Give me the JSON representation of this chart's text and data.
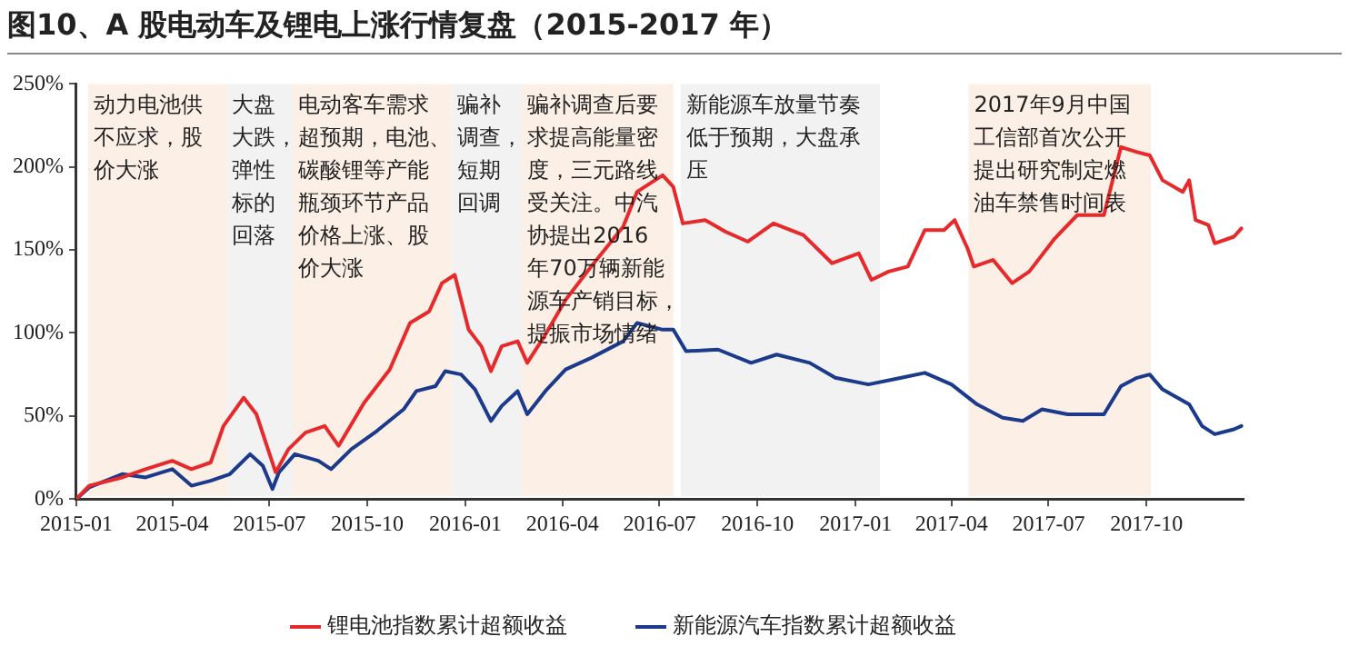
{
  "chart_data": {
    "type": "line",
    "title": "图10、A 股电动车及锂电上涨行情复盘（2015-2017 年）",
    "xlim": [
      "2015-01-01",
      "2017-12-31"
    ],
    "xticks": [
      "2015-01",
      "2015-04",
      "2015-07",
      "2015-10",
      "2016-01",
      "2016-04",
      "2016-07",
      "2016-10",
      "2017-01",
      "2017-04",
      "2017-07",
      "2017-10"
    ],
    "ylim": [
      0,
      250
    ],
    "yticks": [
      {
        "value": 0,
        "label": "0%"
      },
      {
        "value": 50,
        "label": "50%"
      },
      {
        "value": 100,
        "label": "100%"
      },
      {
        "value": 150,
        "label": "150%"
      },
      {
        "value": 200,
        "label": "200%"
      },
      {
        "value": 250,
        "label": "250%"
      }
    ],
    "grid": false,
    "legend": "bottom",
    "marker": "none",
    "line_style": "solid",
    "series": [
      {
        "name": "锂电池指数累计超额收益",
        "color": "#e8292b",
        "x": [
          "2015-01-01",
          "2015-01-13",
          "2015-02-13",
          "2015-03-07",
          "2015-04-01",
          "2015-04-19",
          "2015-05-07",
          "2015-05-19",
          "2015-06-07",
          "2015-06-19",
          "2015-07-07",
          "2015-07-19",
          "2015-08-04",
          "2015-08-22",
          "2015-09-04",
          "2015-09-28",
          "2015-10-22",
          "2015-11-10",
          "2015-11-28",
          "2015-12-10",
          "2015-12-22",
          "2016-01-04",
          "2016-01-16",
          "2016-01-25",
          "2016-02-04",
          "2016-02-19",
          "2016-02-28",
          "2016-03-16",
          "2016-04-04",
          "2016-04-28",
          "2016-05-28",
          "2016-06-10",
          "2016-07-04",
          "2016-07-14",
          "2016-07-23",
          "2016-08-13",
          "2016-09-01",
          "2016-09-22",
          "2016-10-16",
          "2016-11-13",
          "2016-12-10",
          "2017-01-04",
          "2017-01-16",
          "2017-02-01",
          "2017-02-19",
          "2017-03-07",
          "2017-03-25",
          "2017-04-04",
          "2017-04-16",
          "2017-04-22",
          "2017-05-10",
          "2017-05-28",
          "2017-06-13",
          "2017-07-07",
          "2017-07-28",
          "2017-08-22",
          "2017-09-07",
          "2017-09-22",
          "2017-10-04",
          "2017-10-16",
          "2017-11-04",
          "2017-11-10",
          "2017-11-16",
          "2017-11-28",
          "2017-12-04",
          "2017-12-22",
          "2017-12-29"
        ],
        "values": [
          0,
          8,
          13,
          18,
          23,
          18,
          22,
          44,
          61,
          51,
          16,
          30,
          40,
          44,
          32,
          58,
          78,
          106,
          113,
          130,
          135,
          102,
          92,
          77,
          92,
          95,
          82,
          99,
          120,
          140,
          164,
          185,
          195,
          188,
          166,
          168,
          161,
          155,
          166,
          159,
          142,
          148,
          132,
          137,
          140,
          162,
          162,
          168,
          151,
          140,
          144,
          130,
          137,
          157,
          171,
          171,
          212,
          209,
          207,
          192,
          185,
          192,
          168,
          165,
          154,
          158,
          163
        ]
      },
      {
        "name": "新能源汽车指数累计超额收益",
        "color": "#1b3a8c",
        "x": [
          "2015-01-01",
          "2015-01-13",
          "2015-02-13",
          "2015-03-07",
          "2015-04-01",
          "2015-04-19",
          "2015-05-07",
          "2015-05-25",
          "2015-06-13",
          "2015-06-25",
          "2015-07-04",
          "2015-07-10",
          "2015-07-25",
          "2015-08-16",
          "2015-08-28",
          "2015-09-16",
          "2015-10-10",
          "2015-11-04",
          "2015-11-16",
          "2015-12-04",
          "2015-12-13",
          "2015-12-28",
          "2016-01-10",
          "2016-01-25",
          "2016-02-04",
          "2016-02-19",
          "2016-02-28",
          "2016-03-16",
          "2016-04-04",
          "2016-04-28",
          "2016-05-28",
          "2016-06-10",
          "2016-07-04",
          "2016-07-14",
          "2016-07-26",
          "2016-08-25",
          "2016-09-25",
          "2016-10-19",
          "2016-11-19",
          "2016-12-13",
          "2017-01-13",
          "2017-02-13",
          "2017-03-07",
          "2017-04-01",
          "2017-04-25",
          "2017-05-19",
          "2017-06-07",
          "2017-06-25",
          "2017-07-19",
          "2017-08-22",
          "2017-09-07",
          "2017-09-22",
          "2017-10-04",
          "2017-10-16",
          "2017-11-10",
          "2017-11-22",
          "2017-12-04",
          "2017-12-22",
          "2017-12-29"
        ],
        "values": [
          0,
          7,
          15,
          13,
          18,
          8,
          11,
          15,
          27,
          20,
          6,
          16,
          27,
          23,
          18,
          30,
          41,
          54,
          65,
          68,
          77,
          75,
          66,
          47,
          56,
          65,
          51,
          65,
          78,
          85,
          95,
          106,
          102,
          102,
          89,
          90,
          82,
          87,
          82,
          73,
          69,
          73,
          76,
          69,
          57,
          49,
          47,
          54,
          51,
          51,
          68,
          73,
          75,
          66,
          57,
          44,
          39,
          42,
          44
        ]
      }
    ],
    "bands": [
      {
        "axis": "x",
        "from": "2015-01-12",
        "to": "2015-05-22",
        "color": "#fcefe6",
        "label": "动力电池供不应求，股价大涨"
      },
      {
        "axis": "x",
        "from": "2015-05-22",
        "to": "2015-07-23",
        "color": "#f2f2f2",
        "label": "大盘大跌，弹性标的回落"
      },
      {
        "axis": "x",
        "from": "2015-07-23",
        "to": "2015-12-19",
        "color": "#fcefe6",
        "label": "电动客车需求超预期，电池、碳酸锂等产能瓶颈环节产品价格上涨、股价大涨"
      },
      {
        "axis": "x",
        "from": "2015-12-19",
        "to": "2016-02-23",
        "color": "#f2f2f2",
        "label": "骗补调查，短期回调"
      },
      {
        "axis": "x",
        "from": "2016-02-23",
        "to": "2016-07-14",
        "color": "#fcefe6",
        "label": "骗补调查后要求提高能量密度，三元路线受关注。中汽协提出2016年70万辆新能源车产销目标，提振市场情绪"
      },
      {
        "axis": "x",
        "from": "2016-07-21",
        "to": "2017-01-24",
        "color": "#f2f2f2",
        "label": "新能源车放量节奏低于预期，大盘承压"
      },
      {
        "axis": "x",
        "from": "2017-04-17",
        "to": "2017-10-05",
        "color": "#fcefe6",
        "label": "2017年9月中国工信部首次公开提出研究制定燃油车禁售时间表"
      }
    ]
  }
}
